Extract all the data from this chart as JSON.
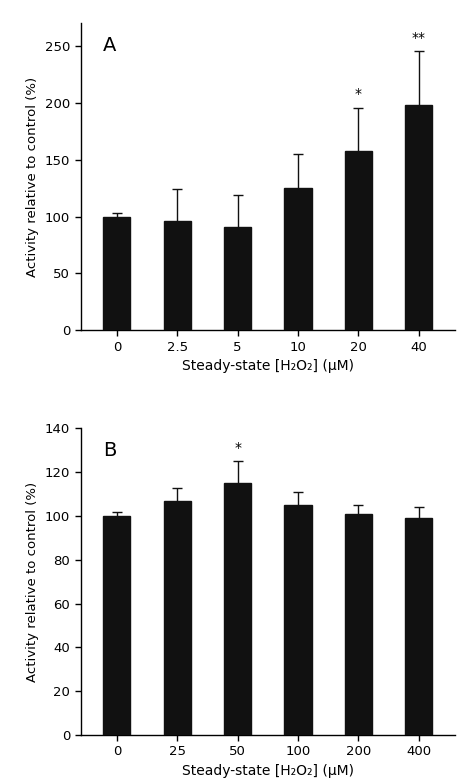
{
  "panel_A": {
    "label": "A",
    "categories": [
      "0",
      "2.5",
      "5",
      "10",
      "20",
      "40"
    ],
    "values": [
      100,
      96,
      91,
      125,
      158,
      198
    ],
    "errors": [
      3,
      28,
      28,
      30,
      38,
      48
    ],
    "significance": [
      "",
      "",
      "",
      "",
      "*",
      "**"
    ],
    "ylabel": "Activity relative to control (%)",
    "xlabel": "Steady-state [H₂O₂] (μM)",
    "ylim": [
      0,
      270
    ],
    "yticks": [
      0,
      50,
      100,
      150,
      200,
      250
    ],
    "bar_color": "#111111",
    "ecolor": "#111111"
  },
  "panel_B": {
    "label": "B",
    "categories": [
      "0",
      "25",
      "50",
      "100",
      "200",
      "400"
    ],
    "values": [
      100,
      107,
      115,
      105,
      101,
      99
    ],
    "errors": [
      2,
      6,
      10,
      6,
      4,
      5
    ],
    "significance": [
      "",
      "",
      "*",
      "",
      "",
      ""
    ],
    "ylabel": "Activity relative to control (%)",
    "xlabel": "Steady-state [H₂O₂] (μM)",
    "ylim": [
      0,
      140
    ],
    "yticks": [
      0,
      20,
      40,
      60,
      80,
      100,
      120,
      140
    ],
    "bar_color": "#111111",
    "ecolor": "#111111"
  }
}
